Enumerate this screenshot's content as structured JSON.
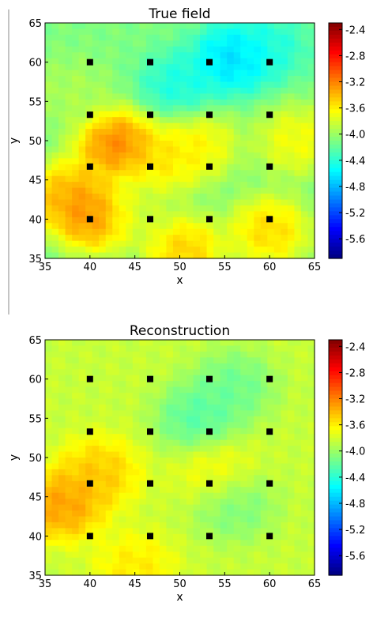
{
  "colormap": "jet",
  "chart_data": [
    {
      "type": "heatmap",
      "title": "True field",
      "xlabel": "x",
      "ylabel": "y",
      "xlim": [
        35,
        65
      ],
      "ylim": [
        35,
        65
      ],
      "xticks": [
        "35",
        "40",
        "45",
        "50",
        "55",
        "60",
        "65"
      ],
      "yticks": [
        "35",
        "40",
        "45",
        "50",
        "55",
        "60",
        "65"
      ],
      "colorbar": {
        "min": -5.9,
        "max": -2.3,
        "ticks": [
          "-2.4",
          "-2.8",
          "-3.2",
          "-3.6",
          "-4.0",
          "-4.4",
          "-4.8",
          "-5.2",
          "-5.6"
        ]
      },
      "field_features": [
        {
          "x": 56,
          "y": 60.5,
          "value": -4.85
        },
        {
          "x": 50,
          "y": 57,
          "value": -4.55
        },
        {
          "x": 60,
          "y": 62,
          "value": -4.5
        },
        {
          "x": 43,
          "y": 49.5,
          "value": -2.95
        },
        {
          "x": 40.5,
          "y": 40.5,
          "value": -3.0
        },
        {
          "x": 37.5,
          "y": 43,
          "value": -3.2
        },
        {
          "x": 48,
          "y": 47.5,
          "value": -3.45
        },
        {
          "x": 52,
          "y": 49.5,
          "value": -3.5
        },
        {
          "x": 50.5,
          "y": 36,
          "value": -3.3
        },
        {
          "x": 60,
          "y": 38.5,
          "value": -3.35
        },
        {
          "x": 63,
          "y": 50,
          "value": -3.55
        },
        {
          "x": 38,
          "y": 56,
          "value": -3.9
        },
        {
          "x": 45,
          "y": 41,
          "value": -3.8
        }
      ],
      "background_value": -4.1,
      "markers": [
        {
          "x": 40,
          "y": 60
        },
        {
          "x": 46.7,
          "y": 60
        },
        {
          "x": 53.3,
          "y": 60
        },
        {
          "x": 60,
          "y": 60
        },
        {
          "x": 40,
          "y": 53.3
        },
        {
          "x": 46.7,
          "y": 53.3
        },
        {
          "x": 53.3,
          "y": 53.3
        },
        {
          "x": 60,
          "y": 53.3
        },
        {
          "x": 40,
          "y": 46.7
        },
        {
          "x": 46.7,
          "y": 46.7
        },
        {
          "x": 53.3,
          "y": 46.7
        },
        {
          "x": 60,
          "y": 46.7
        },
        {
          "x": 40,
          "y": 40
        },
        {
          "x": 46.7,
          "y": 40
        },
        {
          "x": 53.3,
          "y": 40
        },
        {
          "x": 60,
          "y": 40
        }
      ]
    },
    {
      "type": "heatmap",
      "title": "Reconstruction",
      "xlabel": "x",
      "ylabel": "y",
      "xlim": [
        35,
        65
      ],
      "ylim": [
        35,
        65
      ],
      "xticks": [
        "35",
        "40",
        "45",
        "50",
        "55",
        "60",
        "65"
      ],
      "yticks": [
        "35",
        "40",
        "45",
        "50",
        "55",
        "60",
        "65"
      ],
      "colorbar": {
        "min": -5.9,
        "max": -2.3,
        "ticks": [
          "-2.4",
          "-2.8",
          "-3.2",
          "-3.6",
          "-4.0",
          "-4.4",
          "-4.8",
          "-5.2",
          "-5.6"
        ]
      },
      "field_features": [
        {
          "x": 52,
          "y": 55,
          "value": -4.35
        },
        {
          "x": 56,
          "y": 59,
          "value": -4.25
        },
        {
          "x": 56,
          "y": 44,
          "value": -4.2
        },
        {
          "x": 37,
          "y": 44,
          "value": -3.15
        },
        {
          "x": 41,
          "y": 48,
          "value": -3.35
        },
        {
          "x": 45,
          "y": 36,
          "value": -3.5
        },
        {
          "x": 54,
          "y": 48,
          "value": -3.6
        }
      ],
      "background_value": -3.85,
      "markers": [
        {
          "x": 40,
          "y": 60
        },
        {
          "x": 46.7,
          "y": 60
        },
        {
          "x": 53.3,
          "y": 60
        },
        {
          "x": 60,
          "y": 60
        },
        {
          "x": 40,
          "y": 53.3
        },
        {
          "x": 46.7,
          "y": 53.3
        },
        {
          "x": 53.3,
          "y": 53.3
        },
        {
          "x": 60,
          "y": 53.3
        },
        {
          "x": 40,
          "y": 46.7
        },
        {
          "x": 46.7,
          "y": 46.7
        },
        {
          "x": 53.3,
          "y": 46.7
        },
        {
          "x": 60,
          "y": 46.7
        },
        {
          "x": 40,
          "y": 40
        },
        {
          "x": 46.7,
          "y": 40
        },
        {
          "x": 53.3,
          "y": 40
        },
        {
          "x": 60,
          "y": 40
        }
      ]
    }
  ]
}
